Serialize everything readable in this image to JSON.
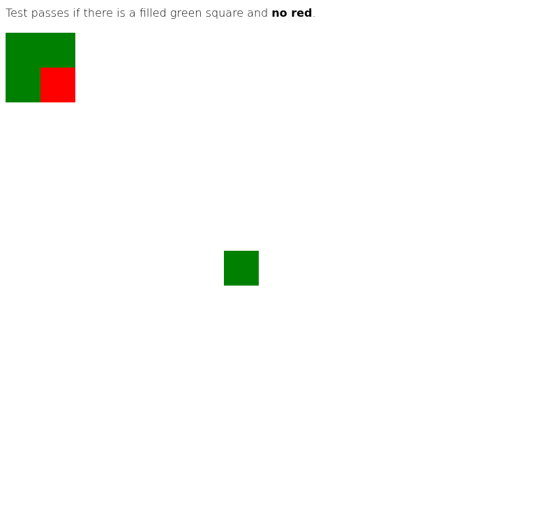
{
  "instruction": {
    "prefix": "Test passes if there is a filled green square and ",
    "emphasis": "no red",
    "suffix": "."
  },
  "colors": {
    "green": "#008000",
    "red": "#ff0000"
  }
}
